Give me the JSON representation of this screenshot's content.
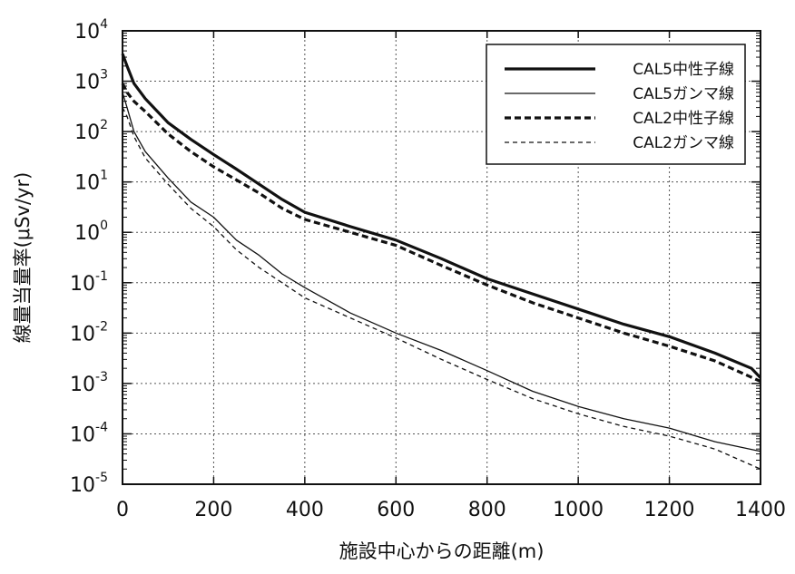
{
  "chart_data": {
    "type": "line",
    "xlabel": "施設中心からの距離(m)",
    "ylabel": "線量当量率(μSv/yr)",
    "xlim": [
      0,
      1400
    ],
    "ylim": [
      1e-05,
      10000.0
    ],
    "yscale": "log",
    "xticks": [
      0,
      200,
      400,
      600,
      800,
      1000,
      1200,
      1400
    ],
    "yticks": [
      {
        "base": "10",
        "exp": "4",
        "value": 10000
      },
      {
        "base": "10",
        "exp": "3",
        "value": 1000
      },
      {
        "base": "10",
        "exp": "2",
        "value": 100
      },
      {
        "base": "10",
        "exp": "1",
        "value": 10
      },
      {
        "base": "10",
        "exp": "0",
        "value": 1
      },
      {
        "base": "10",
        "exp": "-1",
        "value": 0.1
      },
      {
        "base": "10",
        "exp": "-2",
        "value": 0.01
      },
      {
        "base": "10",
        "exp": "-3",
        "value": 0.001
      },
      {
        "base": "10",
        "exp": "-4",
        "value": 0.0001
      },
      {
        "base": "10",
        "exp": "-5",
        "value": 1e-05
      }
    ],
    "grid": true,
    "legend_position": "top-right",
    "series": [
      {
        "name": "CAL5中性子線",
        "style": "thick-solid",
        "x": [
          0,
          10,
          25,
          50,
          100,
          150,
          200,
          250,
          300,
          350,
          400,
          500,
          600,
          700,
          800,
          900,
          1000,
          1100,
          1200,
          1300,
          1380,
          1400
        ],
        "y": [
          3500,
          2000,
          900,
          450,
          150,
          70,
          35,
          18,
          9,
          4.5,
          2.5,
          1.3,
          0.7,
          0.3,
          0.12,
          0.06,
          0.03,
          0.015,
          0.0085,
          0.004,
          0.002,
          0.0013
        ]
      },
      {
        "name": "CAL5ガンマ線",
        "style": "thin-solid",
        "x": [
          0,
          10,
          25,
          50,
          100,
          150,
          200,
          250,
          300,
          350,
          400,
          500,
          600,
          700,
          800,
          900,
          1000,
          1100,
          1200,
          1300,
          1400
        ],
        "y": [
          600,
          300,
          100,
          40,
          12,
          4,
          2,
          0.7,
          0.35,
          0.15,
          0.08,
          0.025,
          0.01,
          0.0045,
          0.0018,
          0.0007,
          0.00035,
          0.0002,
          0.00013,
          7e-05,
          4.5e-05
        ]
      },
      {
        "name": "CAL2中性子線",
        "style": "thick-dashed",
        "x": [
          0,
          10,
          25,
          50,
          100,
          150,
          200,
          250,
          300,
          350,
          400,
          500,
          600,
          700,
          800,
          900,
          1000,
          1100,
          1200,
          1300,
          1400
        ],
        "y": [
          900,
          600,
          400,
          250,
          90,
          40,
          20,
          11,
          6,
          3,
          1.8,
          1.0,
          0.55,
          0.22,
          0.09,
          0.04,
          0.02,
          0.01,
          0.0055,
          0.0028,
          0.0011
        ]
      },
      {
        "name": "CAL2ガンマ線",
        "style": "thin-dashed",
        "x": [
          0,
          10,
          25,
          50,
          100,
          150,
          200,
          250,
          300,
          350,
          400,
          500,
          600,
          700,
          800,
          900,
          1000,
          1100,
          1200,
          1300,
          1400
        ],
        "y": [
          300,
          200,
          80,
          30,
          9,
          3,
          1.3,
          0.45,
          0.2,
          0.1,
          0.05,
          0.02,
          0.008,
          0.003,
          0.0012,
          0.0005,
          0.00025,
          0.00014,
          9e-05,
          5e-05,
          2e-05
        ]
      }
    ]
  }
}
